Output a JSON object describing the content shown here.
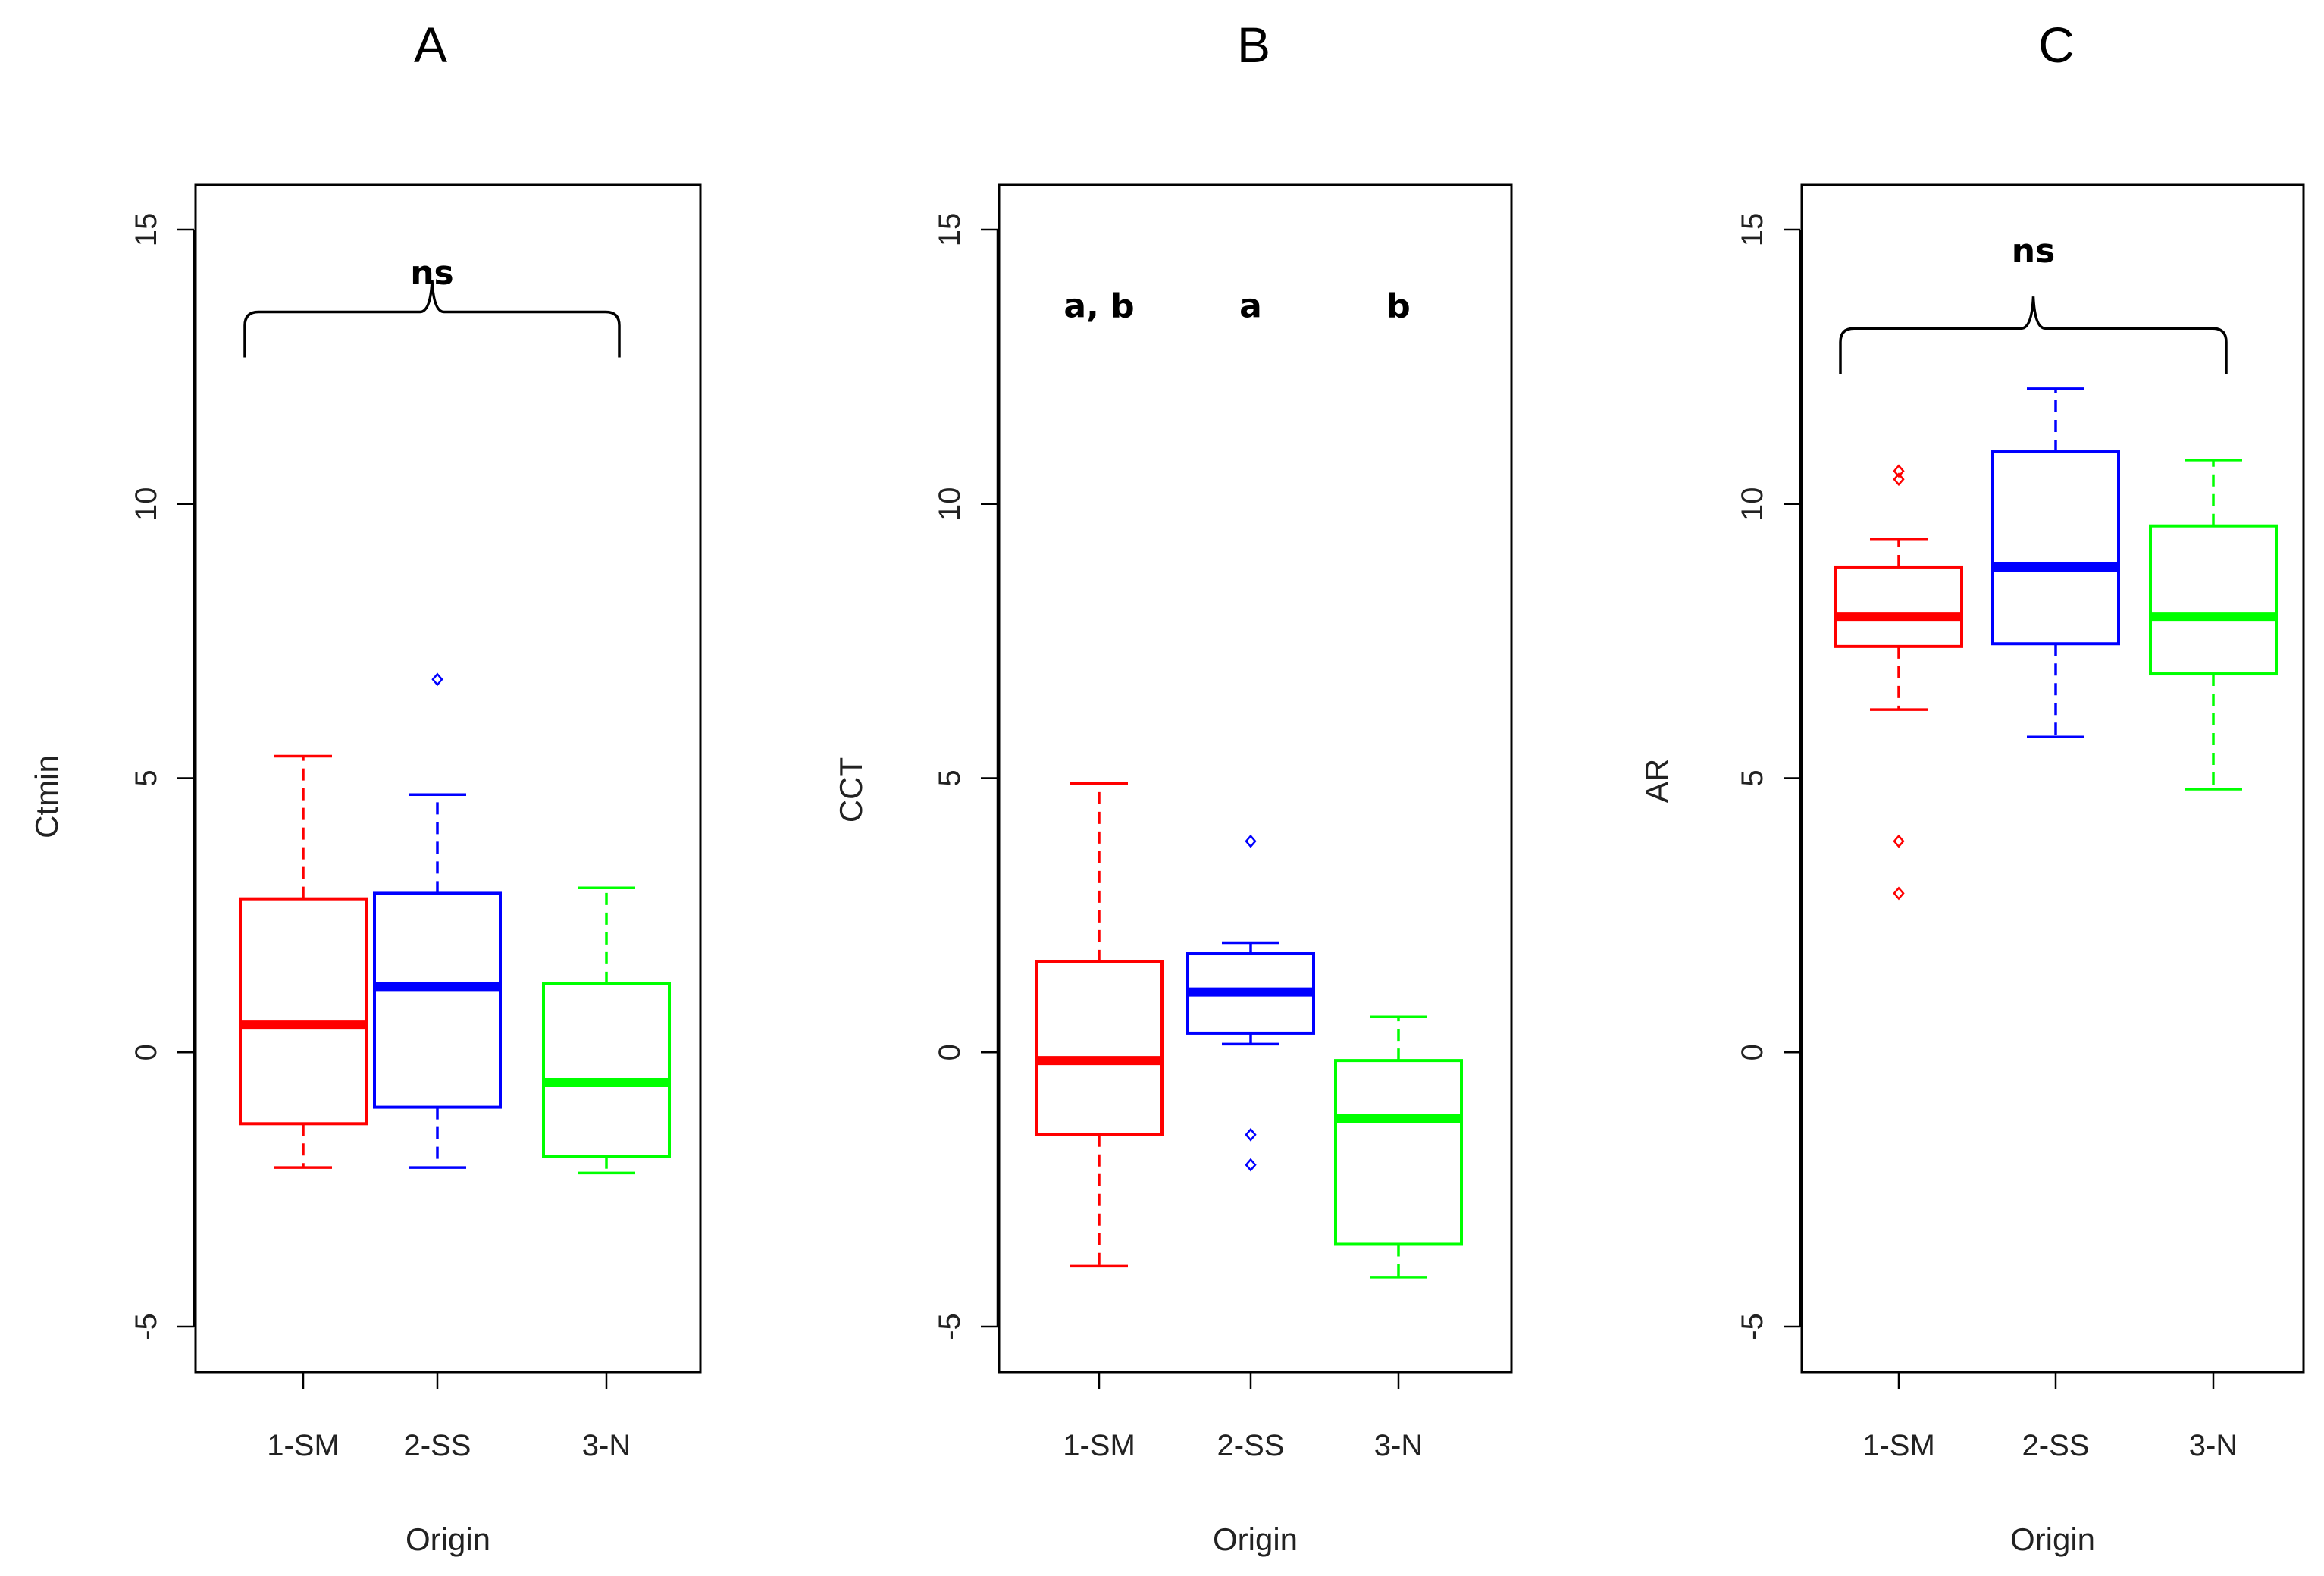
{
  "chart_data": [
    {
      "type": "boxplot",
      "panel_label": "A",
      "xlabel": "Origin",
      "ylabel": "Ctmin",
      "ylim": [
        -5,
        15
      ],
      "yticks": [
        -5,
        0,
        5,
        10,
        15
      ],
      "categories": [
        "1-SM",
        "2-SS",
        "3-N"
      ],
      "colors": [
        "#ff0000",
        "#0000ff",
        "#00ff00"
      ],
      "boxes": [
        {
          "category": "1-SM",
          "whisker_low": -2.1,
          "q1": -1.3,
          "median": 0.5,
          "q3": 2.8,
          "whisker_high": 5.4,
          "outliers": []
        },
        {
          "category": "2-SS",
          "whisker_low": -2.1,
          "q1": -1.0,
          "median": 1.2,
          "q3": 2.9,
          "whisker_high": 4.7,
          "outliers": [
            6.8
          ]
        },
        {
          "category": "3-N",
          "whisker_low": -2.2,
          "q1": -1.9,
          "median": -0.55,
          "q3": 1.25,
          "whisker_high": 3.0,
          "outliers": []
        }
      ],
      "annotations": [
        {
          "text": "ns",
          "type": "brace",
          "from": "1-SM",
          "to": "3-N",
          "level": 13.5,
          "text_value": 14.2
        }
      ]
    },
    {
      "type": "boxplot",
      "panel_label": "B",
      "xlabel": "Origin",
      "ylabel": "CCT",
      "ylim": [
        -5,
        15
      ],
      "yticks": [
        -5,
        0,
        5,
        10,
        15
      ],
      "categories": [
        "1-SM",
        "2-SS",
        "3-N"
      ],
      "colors": [
        "#ff0000",
        "#0000ff",
        "#00ff00"
      ],
      "boxes": [
        {
          "category": "1-SM",
          "whisker_low": -3.9,
          "q1": -1.5,
          "median": -0.15,
          "q3": 1.65,
          "whisker_high": 4.9,
          "outliers": []
        },
        {
          "category": "2-SS",
          "whisker_low": 0.15,
          "q1": 0.35,
          "median": 1.1,
          "q3": 1.8,
          "whisker_high": 2.0,
          "outliers": [
            3.85,
            -1.5,
            -2.05
          ]
        },
        {
          "category": "3-N",
          "whisker_low": -4.1,
          "q1": -3.5,
          "median": -1.2,
          "q3": -0.15,
          "whisker_high": 0.65,
          "outliers": []
        }
      ],
      "annotations": [
        {
          "text": "a, b",
          "type": "label",
          "at": "1-SM",
          "text_value": 13.6
        },
        {
          "text": "a",
          "type": "label",
          "at": "2-SS",
          "text_value": 13.6
        },
        {
          "text": "b",
          "type": "label",
          "at": "3-N",
          "text_value": 13.6
        }
      ]
    },
    {
      "type": "boxplot",
      "panel_label": "C",
      "xlabel": "Origin",
      "ylabel": "AR",
      "ylim": [
        -5,
        15
      ],
      "yticks": [
        -5,
        0,
        5,
        10,
        15
      ],
      "categories": [
        "1-SM",
        "2-SS",
        "3-N"
      ],
      "colors": [
        "#ff0000",
        "#0000ff",
        "#00ff00"
      ],
      "boxes": [
        {
          "category": "1-SM",
          "whisker_low": 6.25,
          "q1": 7.4,
          "median": 7.95,
          "q3": 8.85,
          "whisker_high": 9.35,
          "outliers": [
            10.45,
            10.6,
            3.85,
            2.9
          ]
        },
        {
          "category": "2-SS",
          "whisker_low": 5.75,
          "q1": 7.45,
          "median": 8.85,
          "q3": 10.95,
          "whisker_high": 12.1,
          "outliers": []
        },
        {
          "category": "3-N",
          "whisker_low": 4.8,
          "q1": 6.9,
          "median": 7.95,
          "q3": 9.6,
          "whisker_high": 10.8,
          "outliers": []
        }
      ],
      "annotations": [
        {
          "text": "ns",
          "type": "brace",
          "from": "1-SM",
          "to": "3-N",
          "level": 13.2,
          "text_value": 14.6
        }
      ]
    }
  ]
}
